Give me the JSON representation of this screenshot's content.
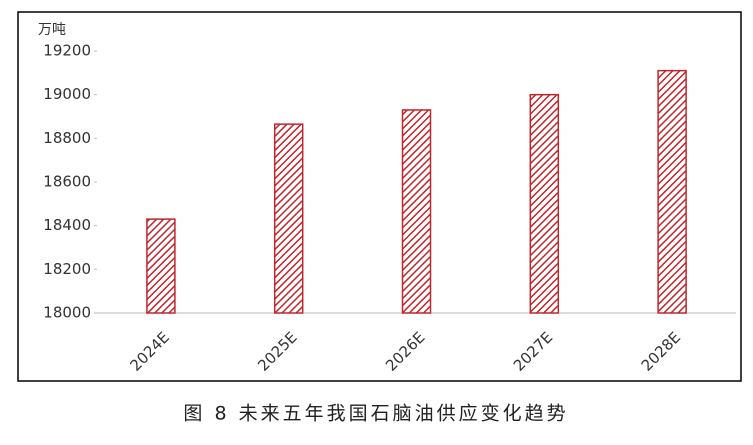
{
  "chart_data": {
    "type": "bar",
    "y_axis_label": "万吨",
    "caption": "图 8  未来五年我国石脑油供应变化趋势",
    "categories": [
      "2024E",
      "2025E",
      "2026E",
      "2027E",
      "2028E"
    ],
    "values": [
      18430,
      18865,
      18930,
      19000,
      19110
    ],
    "color": "#c0272d",
    "ylim": [
      18000,
      19200
    ],
    "yticks": [
      18000,
      18200,
      18400,
      18600,
      18800,
      19000,
      19200
    ],
    "grid": false
  }
}
